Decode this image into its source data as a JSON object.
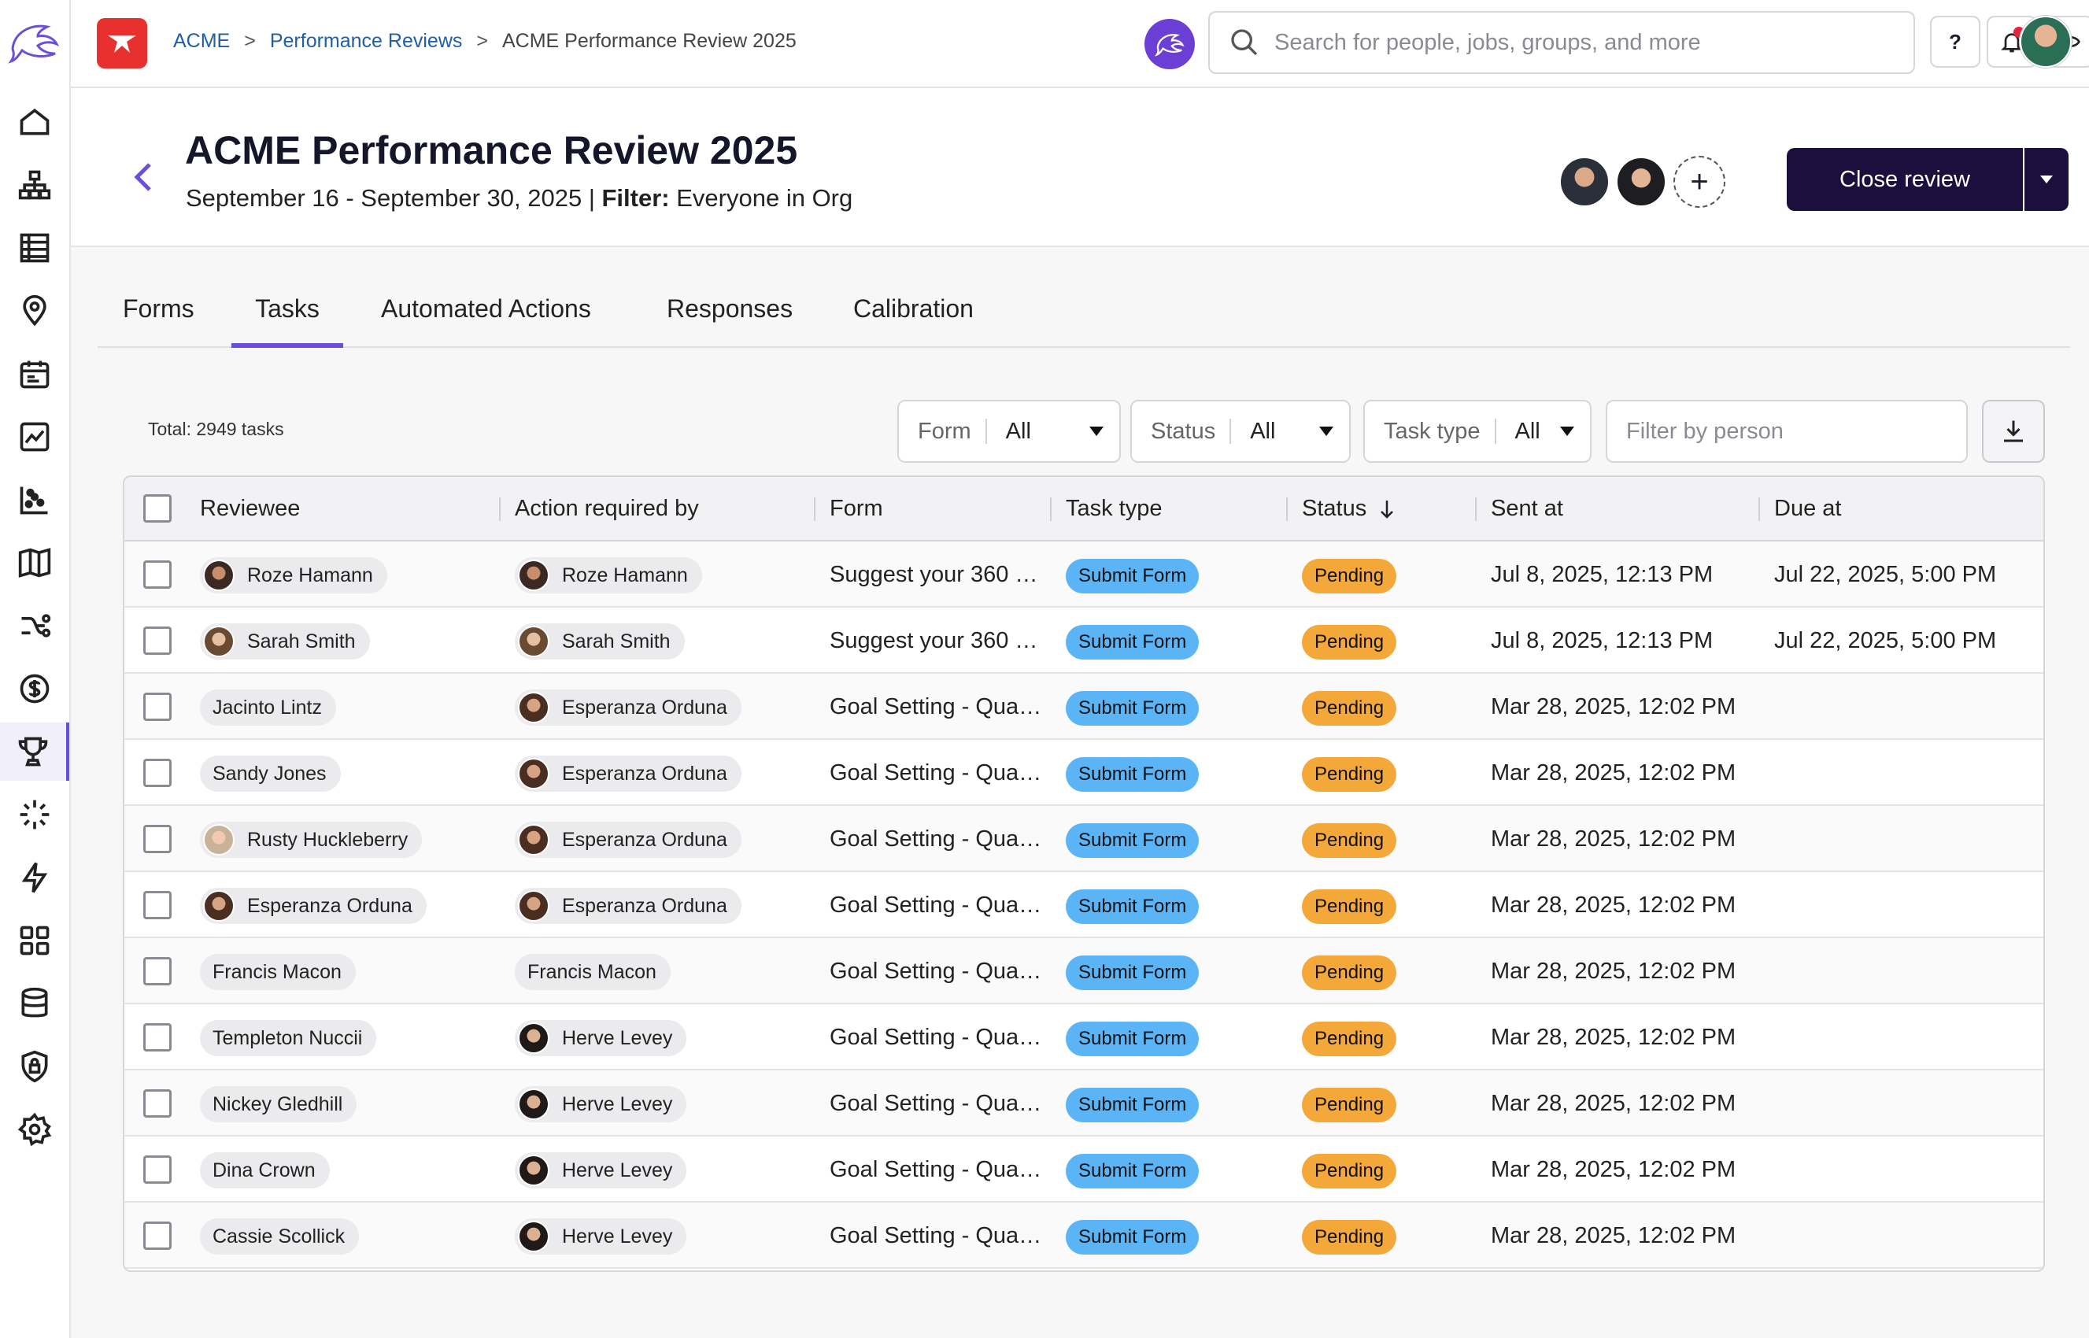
{
  "breadcrumb": {
    "root": "ACME",
    "section": "Performance Reviews",
    "current": "ACME Performance Review 2025",
    "separator": ">"
  },
  "search": {
    "placeholder": "Search for people, jobs, groups, and more"
  },
  "topbar": {
    "help_label": "?"
  },
  "header": {
    "title": "ACME Performance Review 2025",
    "dates": "September 16 - September 30, 2025 |",
    "filter_label": "Filter:",
    "filter_value": "Everyone in Org",
    "close_button": "Close review",
    "add_collaborator": "+"
  },
  "tabs": [
    "Forms",
    "Tasks",
    "Automated Actions",
    "Responses",
    "Calibration"
  ],
  "active_tab": "Tasks",
  "filters": {
    "total": "Total: 2949 tasks",
    "form": {
      "label": "Form",
      "value": "All"
    },
    "status": {
      "label": "Status",
      "value": "All"
    },
    "task_type": {
      "label": "Task type",
      "value": "All"
    },
    "person_placeholder": "Filter by person"
  },
  "table": {
    "headers": {
      "reviewee": "Reviewee",
      "action_required_by": "Action required by",
      "form": "Form",
      "task_type": "Task type",
      "status": "Status",
      "sent_at": "Sent at",
      "due_at": "Due at"
    },
    "rows": [
      {
        "reviewee": "Roze Hamann",
        "action_by": "Roze Hamann",
        "form": "Suggest your 360 …",
        "task_type": "Submit Form",
        "status": "Pending",
        "sent_at": "Jul 8, 2025, 12:13 PM",
        "due_at": "Jul 22, 2025, 5:00 PM"
      },
      {
        "reviewee": "Sarah Smith",
        "action_by": "Sarah Smith",
        "form": "Suggest your 360 …",
        "task_type": "Submit Form",
        "status": "Pending",
        "sent_at": "Jul 8, 2025, 12:13 PM",
        "due_at": "Jul 22, 2025, 5:00 PM"
      },
      {
        "reviewee": "Jacinto Lintz",
        "action_by": "Esperanza Orduna",
        "form": "Goal Setting - Qua…",
        "task_type": "Submit Form",
        "status": "Pending",
        "sent_at": "Mar 28, 2025, 12:02 PM",
        "due_at": ""
      },
      {
        "reviewee": "Sandy Jones",
        "action_by": "Esperanza Orduna",
        "form": "Goal Setting - Qua…",
        "task_type": "Submit Form",
        "status": "Pending",
        "sent_at": "Mar 28, 2025, 12:02 PM",
        "due_at": ""
      },
      {
        "reviewee": "Rusty Huckleberry",
        "action_by": "Esperanza Orduna",
        "form": "Goal Setting - Qua…",
        "task_type": "Submit Form",
        "status": "Pending",
        "sent_at": "Mar 28, 2025, 12:02 PM",
        "due_at": ""
      },
      {
        "reviewee": "Esperanza Orduna",
        "action_by": "Esperanza Orduna",
        "form": "Goal Setting - Qua…",
        "task_type": "Submit Form",
        "status": "Pending",
        "sent_at": "Mar 28, 2025, 12:02 PM",
        "due_at": ""
      },
      {
        "reviewee": "Francis Macon",
        "action_by": "Francis Macon",
        "form": "Goal Setting - Qua…",
        "task_type": "Submit Form",
        "status": "Pending",
        "sent_at": "Mar 28, 2025, 12:02 PM",
        "due_at": ""
      },
      {
        "reviewee": "Templeton Nuccii",
        "action_by": "Herve Levey",
        "form": "Goal Setting - Qua…",
        "task_type": "Submit Form",
        "status": "Pending",
        "sent_at": "Mar 28, 2025, 12:02 PM",
        "due_at": ""
      },
      {
        "reviewee": "Nickey Gledhill",
        "action_by": "Herve Levey",
        "form": "Goal Setting - Qua…",
        "task_type": "Submit Form",
        "status": "Pending",
        "sent_at": "Mar 28, 2025, 12:02 PM",
        "due_at": ""
      },
      {
        "reviewee": "Dina Crown",
        "action_by": "Herve Levey",
        "form": "Goal Setting - Qua…",
        "task_type": "Submit Form",
        "status": "Pending",
        "sent_at": "Mar 28, 2025, 12:02 PM",
        "due_at": ""
      },
      {
        "reviewee": "Cassie Scollick",
        "action_by": "Herve Levey",
        "form": "Goal Setting - Qua…",
        "task_type": "Submit Form",
        "status": "Pending",
        "sent_at": "Mar 28, 2025, 12:02 PM",
        "due_at": ""
      }
    ]
  },
  "colors": {
    "accent": "#6b4fd8",
    "primary_button": "#1d0f3d",
    "submit_badge": "#5ab4f5",
    "pending_badge": "#f4a83a",
    "link": "#1e5fa8"
  },
  "sidebar_icons": [
    "home-icon",
    "org-chart-icon",
    "table-icon",
    "location-icon",
    "calendar-icon",
    "analytics-icon",
    "scatter-chart-icon",
    "book-icon",
    "workflow-icon",
    "dollar-icon",
    "trophy-icon",
    "sparkle-icon",
    "lightning-icon",
    "apps-grid-icon",
    "database-icon",
    "shield-lock-icon",
    "gear-icon"
  ]
}
